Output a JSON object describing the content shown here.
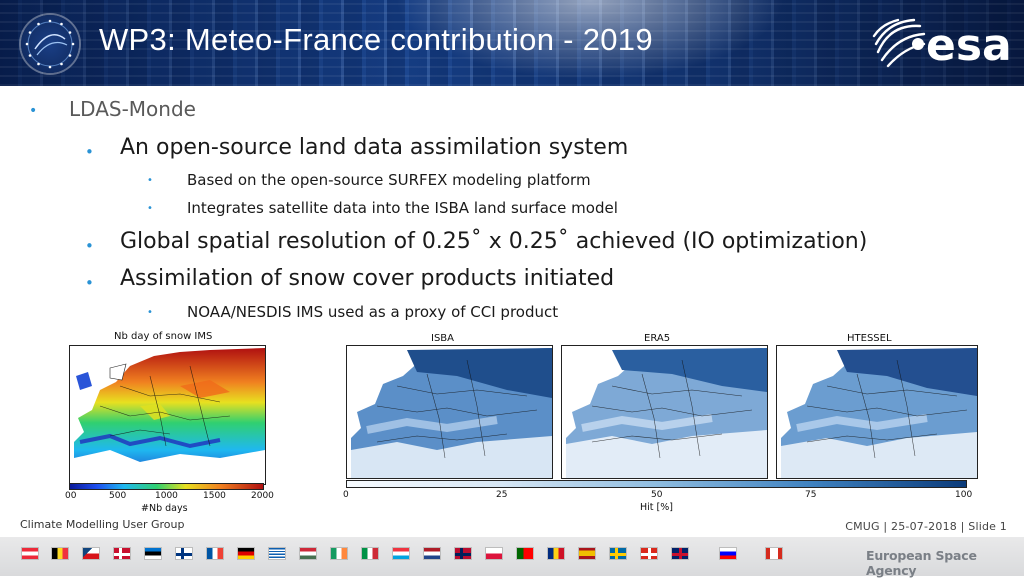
{
  "header": {
    "title": "WP3: Meteo-France contribution - 2019",
    "logo_text": "esa",
    "colors": {
      "banner": "#123a7a",
      "title_text": "#ffffff"
    }
  },
  "bullets": {
    "l1_text": "LDAS-Monde",
    "l2a_text": "An open-source land data assimilation system",
    "l3a_text": "Based on the open-source SURFEX modeling platform",
    "l3b_text": "Integrates satellite data into the ISBA land surface model",
    "l2b_text": "Global spatial resolution of 0.25˚ x 0.25˚ achieved (IO optimization)",
    "l2c_text": "Assimilation of snow cover products initiated",
    "l3c_text": "NOAA/NESDIS IMS used as a proxy of CCI product",
    "bullet_char": "•",
    "bullet_color": "#2a93d5"
  },
  "figures": {
    "snow_map": {
      "title": "Nb day of snow IMS",
      "colorbar_ticks": [
        "00",
        "500",
        "1000",
        "1500",
        "2000"
      ],
      "colorbar_label": "#Nb days"
    },
    "panels": [
      {
        "title": "ISBA"
      },
      {
        "title": "ERA5"
      },
      {
        "title": "HTESSEL"
      }
    ],
    "hit_colorbar": {
      "ticks": [
        "0",
        "25",
        "50",
        "75",
        "100"
      ],
      "label": "Hit [%]"
    }
  },
  "footer": {
    "left": "Climate Modelling User Group",
    "right": "CMUG | 25-07-2018 | Slide  1",
    "agency": "European Space Agency"
  }
}
